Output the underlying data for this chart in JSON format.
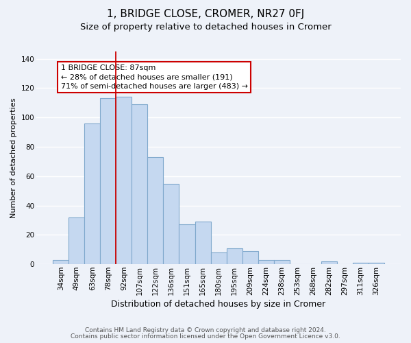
{
  "title": "1, BRIDGE CLOSE, CROMER, NR27 0FJ",
  "subtitle": "Size of property relative to detached houses in Cromer",
  "xlabel": "Distribution of detached houses by size in Cromer",
  "ylabel": "Number of detached properties",
  "categories": [
    "34sqm",
    "49sqm",
    "63sqm",
    "78sqm",
    "92sqm",
    "107sqm",
    "122sqm",
    "136sqm",
    "151sqm",
    "165sqm",
    "180sqm",
    "195sqm",
    "209sqm",
    "224sqm",
    "238sqm",
    "253sqm",
    "268sqm",
    "282sqm",
    "297sqm",
    "311sqm",
    "326sqm"
  ],
  "values": [
    3,
    32,
    96,
    113,
    114,
    109,
    73,
    55,
    27,
    29,
    8,
    11,
    9,
    3,
    3,
    0,
    0,
    2,
    0,
    1,
    1
  ],
  "bar_color": "#c5d8f0",
  "bar_edge_color": "#7fa8cc",
  "red_line_color": "#cc0000",
  "annotation_text": "1 BRIDGE CLOSE: 87sqm\n← 28% of detached houses are smaller (191)\n71% of semi-detached houses are larger (483) →",
  "annotation_box_color": "#ffffff",
  "annotation_box_edge": "#cc0000",
  "footer_line1": "Contains HM Land Registry data © Crown copyright and database right 2024.",
  "footer_line2": "Contains public sector information licensed under the Open Government Licence v3.0.",
  "ylim": [
    0,
    145
  ],
  "background_color": "#eef2f9",
  "grid_color": "#ffffff",
  "title_fontsize": 11,
  "subtitle_fontsize": 9.5,
  "xlabel_fontsize": 9,
  "ylabel_fontsize": 8,
  "tick_fontsize": 7.5,
  "footer_fontsize": 6.5,
  "annot_fontsize": 8.0
}
